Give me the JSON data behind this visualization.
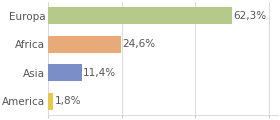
{
  "categories": [
    "America",
    "Asia",
    "Africa",
    "Europa"
  ],
  "values": [
    1.8,
    11.4,
    24.6,
    62.3
  ],
  "bar_colors": [
    "#e8c84a",
    "#7b8ec8",
    "#e8aa78",
    "#b5c98a"
  ],
  "labels": [
    "1,8%",
    "11,4%",
    "24,6%",
    "62,3%"
  ],
  "xlim": [
    0,
    78
  ],
  "background_color": "#ffffff",
  "bar_height": 0.6,
  "label_fontsize": 7.5,
  "ytick_fontsize": 7.5,
  "grid_color": "#cccccc",
  "text_color": "#555555",
  "xticks": [
    0,
    25,
    50,
    75
  ]
}
